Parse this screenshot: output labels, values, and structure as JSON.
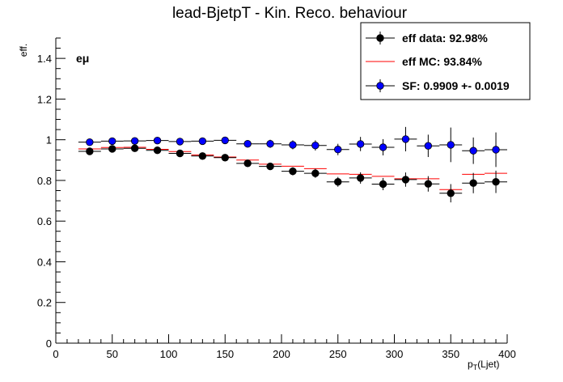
{
  "chart_data": {
    "type": "scatter",
    "title": "lead-BjetpT - Kin. Reco. behaviour",
    "xlabel_main": "p",
    "xlabel_sub": "T",
    "xlabel_rest": "(Ljet)",
    "ylabel": "eff.",
    "channel_label": "eμ",
    "xlim": [
      0,
      400
    ],
    "ylim": [
      0,
      1.5
    ],
    "x_ticks": [
      0,
      50,
      100,
      150,
      200,
      250,
      300,
      350,
      400
    ],
    "y_ticks": [
      0,
      0.2,
      0.4,
      0.6,
      0.8,
      1,
      1.2,
      1.4
    ],
    "x_tick_labels": [
      "0",
      "50",
      "100",
      "150",
      "200",
      "250",
      "300",
      "350",
      "400"
    ],
    "y_tick_labels": [
      "0",
      "0.2",
      "0.4",
      "0.6",
      "0.8",
      "1",
      "1.2",
      "1.4"
    ],
    "x_centers": [
      30,
      50,
      70,
      90,
      110,
      130,
      150,
      170,
      190,
      210,
      230,
      250,
      270,
      290,
      310,
      330,
      350,
      370,
      390
    ],
    "x_halfwidth": 10,
    "series": [
      {
        "name": "eff data: 92.98%",
        "color": "#000000",
        "marker": "circle",
        "values": [
          0.943,
          0.955,
          0.958,
          0.948,
          0.933,
          0.92,
          0.912,
          0.884,
          0.869,
          0.845,
          0.835,
          0.793,
          0.812,
          0.782,
          0.804,
          0.783,
          0.737,
          0.787,
          0.793
        ],
        "errors": [
          0.012,
          0.012,
          0.012,
          0.012,
          0.012,
          0.012,
          0.014,
          0.016,
          0.018,
          0.02,
          0.022,
          0.024,
          0.028,
          0.03,
          0.035,
          0.038,
          0.045,
          0.05,
          0.055
        ]
      },
      {
        "name": "eff MC: 93.84%",
        "color": "#ff0000",
        "marker": "line",
        "values": [
          0.955,
          0.962,
          0.963,
          0.953,
          0.942,
          0.925,
          0.915,
          0.9,
          0.88,
          0.87,
          0.858,
          0.832,
          0.83,
          0.82,
          0.808,
          0.808,
          0.755,
          0.83,
          0.835
        ]
      },
      {
        "name": "SF: 0.9909 +- 0.0019",
        "color": "#0000ff",
        "marker": "circle",
        "values": [
          0.988,
          0.993,
          0.994,
          0.996,
          0.991,
          0.993,
          0.997,
          0.98,
          0.98,
          0.975,
          0.972,
          0.952,
          0.979,
          0.963,
          1.003,
          0.97,
          0.975,
          0.946,
          0.951
        ],
        "errors": [
          0.013,
          0.013,
          0.013,
          0.013,
          0.013,
          0.013,
          0.015,
          0.018,
          0.02,
          0.022,
          0.025,
          0.028,
          0.035,
          0.04,
          0.06,
          0.055,
          0.085,
          0.065,
          0.085
        ]
      }
    ],
    "legend": "top-right",
    "grid": false
  }
}
